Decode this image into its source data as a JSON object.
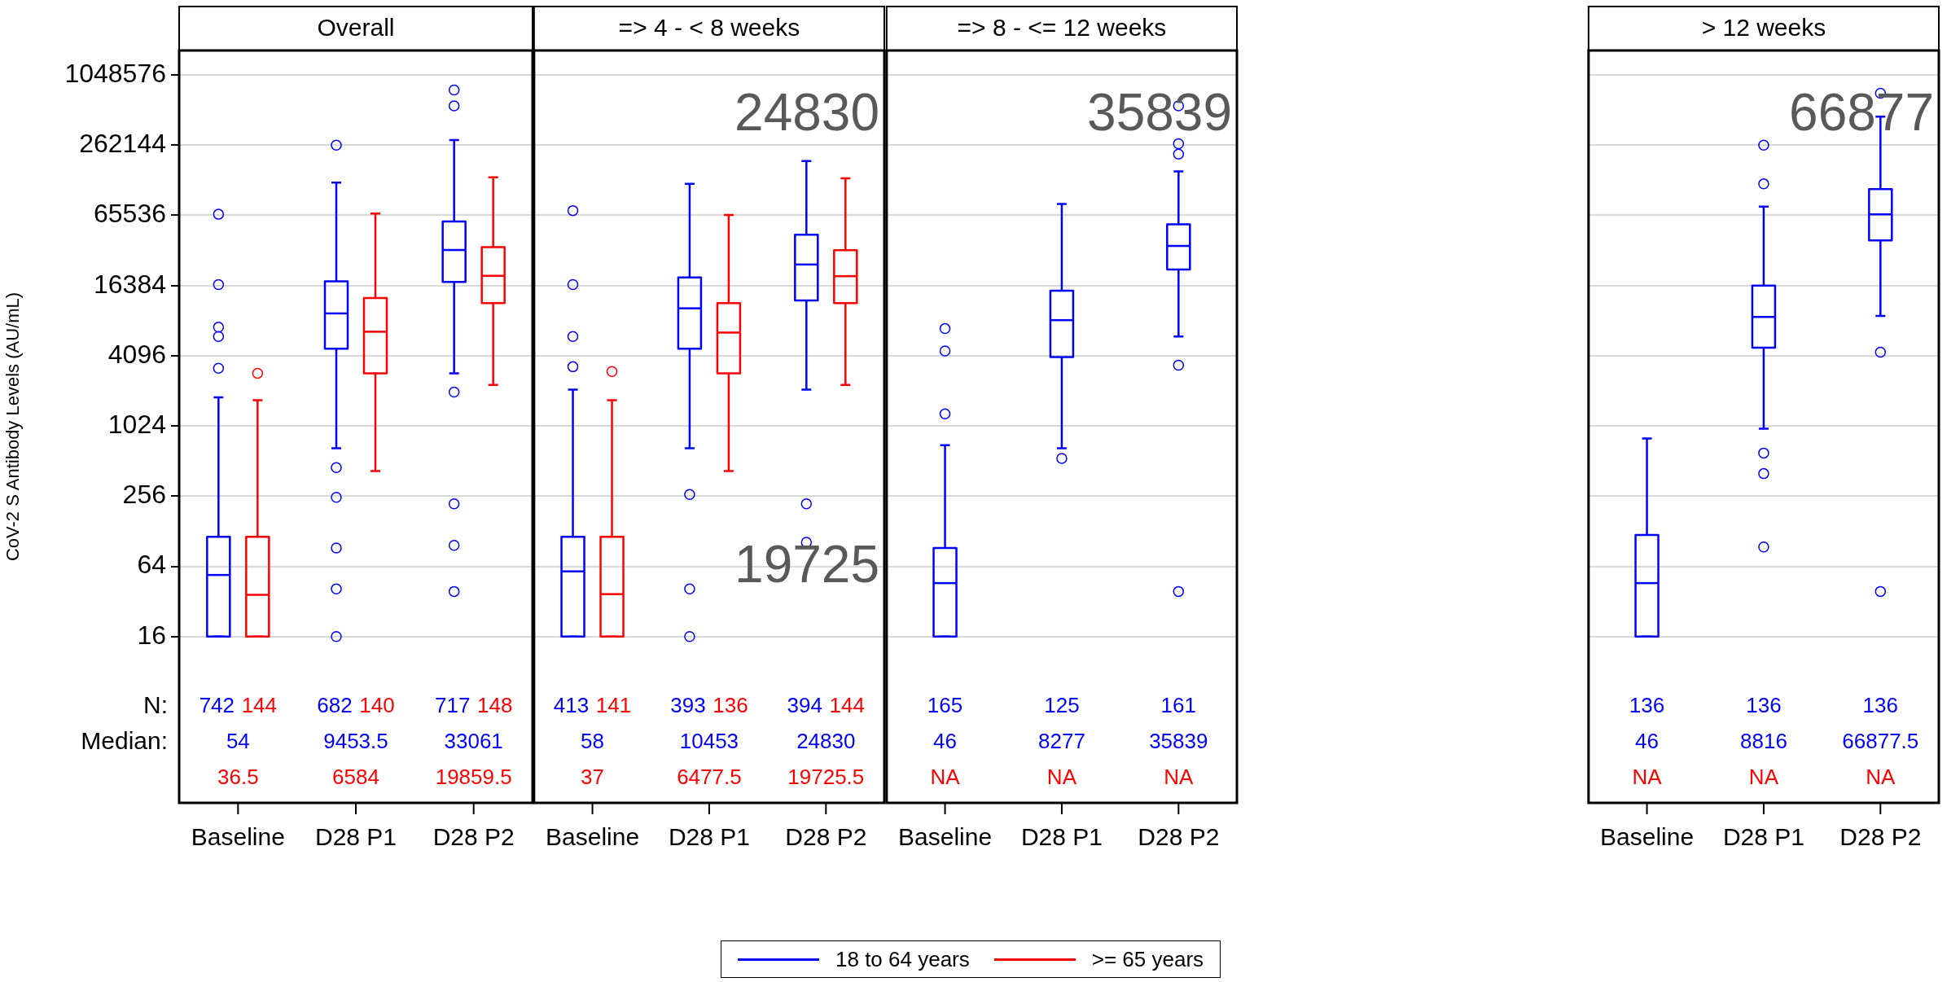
{
  "chart_data": [
    {
      "type": "box",
      "title": "Overall",
      "categories": [
        "Baseline",
        "D28 P1",
        "D28 P2"
      ],
      "ylabel": "CoV-2 S Antibody Levels (AU/mL)",
      "log": true,
      "ylim": [
        0.6,
        1700000
      ],
      "yticks": [
        16,
        64,
        256,
        1024,
        4096,
        16384,
        65536,
        262144,
        1048576
      ],
      "grid": "y",
      "annotations": [
        "N:",
        "Median:",
        "742",
        "144",
        "682",
        "140",
        "717",
        "148"
      ],
      "series": [
        {
          "color": "#0000ff",
          "value_labels": [
            "54",
            "9453.5",
            "33061"
          ],
          "boxes": [
            {
              "low": 16,
              "q1": 16,
              "median": 54,
              "q3": 115,
              "high": 1800,
              "outliers": [
                67000,
                16700,
                7200,
                6000,
                3200
              ]
            },
            {
              "low": 660,
              "q1": 4700,
              "median": 9453.5,
              "q3": 17800,
              "high": 125000,
              "outliers": [
                262000,
                450,
                250,
                92,
                41,
                16
              ]
            },
            {
              "low": 2900,
              "q1": 17600,
              "median": 33061,
              "q3": 58000,
              "high": 290000,
              "outliers": [
                780000,
                570000,
                2000,
                220,
                97,
                39
              ]
            }
          ]
        },
        {
          "color": "#ff0000",
          "value_labels": [
            "36.5",
            "6584",
            "19859.5"
          ],
          "boxes": [
            {
              "low": 16,
              "q1": 16,
              "median": 36.5,
              "q3": 115,
              "high": 1700,
              "outliers": [
                2900
              ]
            },
            {
              "low": 420,
              "q1": 2900,
              "median": 6584,
              "q3": 12800,
              "high": 68000
            },
            {
              "low": 2300,
              "q1": 11600,
              "median": 19859.5,
              "q3": 35000,
              "high": 139000
            }
          ]
        }
      ]
    },
    {
      "type": "box",
      "title": "=> 4 - < 8 weeks",
      "categories": [
        "Baseline",
        "D28 P1",
        "D28 P2"
      ],
      "log": true,
      "ylim": [
        0.6,
        1700000
      ],
      "yticks": [
        16,
        64,
        256,
        1024,
        4096,
        16384,
        65536,
        262144,
        1048576
      ],
      "grid": "y",
      "tick_labels": "x",
      "legend": "bottom",
      "annotations": [
        "24830",
        "19725",
        "413",
        "141",
        "393",
        "136",
        "394",
        "144"
      ],
      "series": [
        {
          "name": "18 to 64 years",
          "color": "#0000ff",
          "value_labels": [
            "58",
            "10453",
            "24830"
          ],
          "boxes": [
            {
              "low": 16,
              "q1": 16,
              "median": 58,
              "q3": 115,
              "high": 2100,
              "outliers": [
                72000,
                16700,
                6000,
                3300
              ]
            },
            {
              "low": 660,
              "q1": 4700,
              "median": 10453,
              "q3": 19200,
              "high": 122000,
              "outliers": [
                265,
                41,
                16
              ]
            },
            {
              "low": 2100,
              "q1": 12200,
              "median": 24830,
              "q3": 44700,
              "high": 192000,
              "outliers": [
                220,
                103
              ]
            }
          ]
        },
        {
          "name": ">= 65 years",
          "color": "#ff0000",
          "value_labels": [
            "37",
            "6477.5",
            "19725.5"
          ],
          "boxes": [
            {
              "low": 16,
              "q1": 16,
              "median": 37,
              "q3": 115,
              "high": 1700,
              "outliers": [
                3000
              ]
            },
            {
              "low": 420,
              "q1": 2900,
              "median": 6477.5,
              "q3": 11600,
              "high": 66000
            },
            {
              "low": 2300,
              "q1": 11600,
              "median": 19725.5,
              "q3": 33000,
              "high": 136000
            }
          ]
        }
      ]
    },
    {
      "type": "box",
      "title": "=> 8 - <= 12 weeks",
      "categories": [
        "Baseline",
        "D28 P1",
        "D28 P2"
      ],
      "log": true,
      "ylim": [
        0.6,
        1700000
      ],
      "yticks": [
        16,
        64,
        256,
        1024,
        4096,
        16384,
        65536,
        262144,
        1048576
      ],
      "grid": "y",
      "tick_labels": "x",
      "annotations": [
        "35839",
        "165",
        "125",
        "161"
      ],
      "series": [
        {
          "color": "#0000ff",
          "value_labels": [
            "46",
            "8277",
            "35839"
          ],
          "boxes": [
            {
              "low": 16,
              "q1": 16,
              "median": 46,
              "q3": 92,
              "high": 700,
              "outliers": [
                7000,
                4500,
                1300
              ]
            },
            {
              "low": 660,
              "q1": 4000,
              "median": 8277,
              "q3": 14800,
              "high": 82000,
              "outliers": [
                540
              ]
            },
            {
              "low": 6000,
              "q1": 22500,
              "median": 35839,
              "q3": 55000,
              "high": 156000,
              "outliers": [
                570000,
                270000,
                220000,
                3400,
                39
              ]
            }
          ]
        },
        {
          "color": "#ff0000",
          "value_labels": [
            "NA",
            "NA",
            "NA"
          ],
          "boxes": [
            null,
            null,
            null
          ]
        }
      ]
    },
    {
      "type": "box",
      "title": "> 12 weeks",
      "categories": [
        "Baseline",
        "D28 P1",
        "D28 P2"
      ],
      "log": true,
      "ylim": [
        0.6,
        1700000
      ],
      "yticks": [
        16,
        64,
        256,
        1024,
        4096,
        16384,
        65536,
        262144,
        1048576
      ],
      "grid": "y",
      "tick_labels": "x",
      "annotations": [
        "66877",
        "136",
        "136",
        "136"
      ],
      "series": [
        {
          "color": "#0000ff",
          "value_labels": [
            "46",
            "8816",
            "66877.5"
          ],
          "boxes": [
            {
              "low": 16,
              "q1": 16,
              "median": 46,
              "q3": 119,
              "high": 800
            },
            {
              "low": 970,
              "q1": 4800,
              "median": 8816,
              "q3": 16400,
              "high": 78000,
              "outliers": [
                262000,
                122000,
                600,
                400,
                94
              ]
            },
            {
              "low": 9000,
              "q1": 40000,
              "median": 66877.5,
              "q3": 110000,
              "high": 460000,
              "outliers": [
                730000,
                4400,
                39
              ]
            }
          ]
        },
        {
          "color": "#ff0000",
          "value_labels": [
            "NA",
            "NA",
            "NA"
          ],
          "boxes": [
            null,
            null,
            null
          ]
        }
      ]
    }
  ]
}
